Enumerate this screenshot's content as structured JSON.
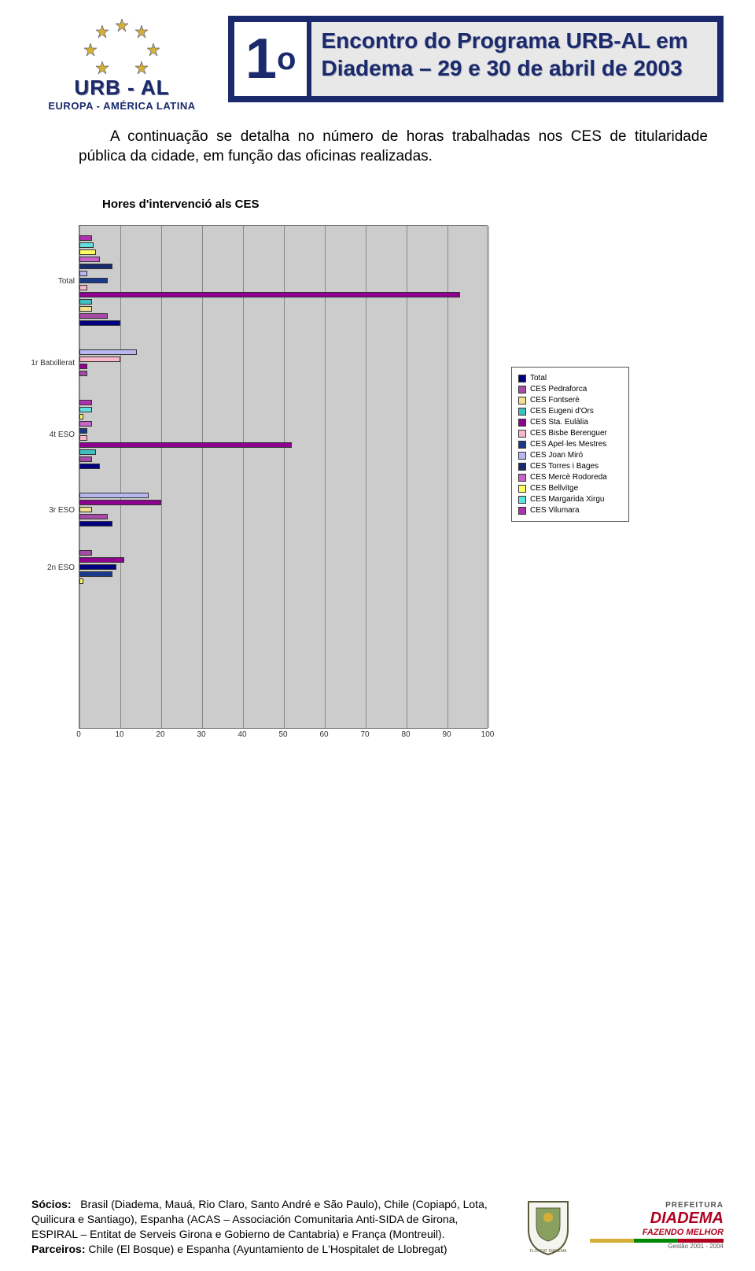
{
  "header": {
    "logo_title": "URB - AL",
    "logo_sub": "EUROPA - AMÉRICA LATINA",
    "banner_num": "1",
    "banner_sup": "o",
    "banner_line1": "Encontro do Programa URB-AL em",
    "banner_line2": "Diadema – 29 e 30 de abril de 2003"
  },
  "intro": {
    "text": "A continuação se detalha no número de horas trabalhadas nos CES de titularidade pública da cidade, em função das oficinas realizadas."
  },
  "chart": {
    "title": "Hores d'intervenció als CES",
    "type": "bar-horizontal-grouped",
    "background_color": "#cccccc",
    "grid_color": "#888888",
    "x_min": 0,
    "x_max": 100,
    "x_step": 10,
    "x_ticks": [
      0,
      10,
      20,
      30,
      40,
      50,
      60,
      70,
      80,
      90,
      100
    ],
    "y_categories": [
      "Total",
      "1r Batxillerat",
      "4t ESO",
      "3r ESO",
      "2n ESO"
    ],
    "series": [
      {
        "name": "Total",
        "color": "#000080"
      },
      {
        "name": "CES Pedraforca",
        "color": "#a64ca6"
      },
      {
        "name": "CES Fontserè",
        "color": "#f0e090"
      },
      {
        "name": "CES Eugeni d'Ors",
        "color": "#40c0c0"
      },
      {
        "name": "CES Sta. Eulàlia",
        "color": "#900090"
      },
      {
        "name": "CES Bisbe Berenguer",
        "color": "#f8b8c8"
      },
      {
        "name": "CES Apel·les Mestres",
        "color": "#1a3a8a"
      },
      {
        "name": "CES Joan Miró",
        "color": "#b8b8f0"
      },
      {
        "name": "CES Torres i Bages",
        "color": "#1a2a6c"
      },
      {
        "name": "CES Mercè Rodoreda",
        "color": "#c864c8"
      },
      {
        "name": "CES Bellvitge",
        "color": "#ffff60"
      },
      {
        "name": "CES Margarida Xirgu",
        "color": "#60e0e0"
      },
      {
        "name": "CES Vilumara",
        "color": "#b030b0"
      }
    ],
    "groups": [
      {
        "category": "Total",
        "bars": [
          {
            "series": "CES Vilumara",
            "value": 3,
            "color": "#b030b0"
          },
          {
            "series": "CES Margarida Xirgu",
            "value": 3.5,
            "color": "#60e0e0"
          },
          {
            "series": "CES Bellvitge",
            "value": 4,
            "color": "#ffff60"
          },
          {
            "series": "CES Mercè Rodoreda",
            "value": 5,
            "color": "#c864c8"
          },
          {
            "series": "CES Torres i Bages",
            "value": 8,
            "color": "#1a2a6c"
          },
          {
            "series": "CES Joan Miró",
            "value": 2,
            "color": "#b8b8f0"
          },
          {
            "series": "CES Apel·les Mestres",
            "value": 7,
            "color": "#1a3a8a"
          },
          {
            "series": "CES Bisbe Berenguer",
            "value": 2,
            "color": "#f8b8c8"
          },
          {
            "series": "CES Sta. Eulàlia",
            "value": 93,
            "color": "#900090"
          },
          {
            "series": "CES Eugeni d'Ors",
            "value": 3,
            "color": "#40c0c0"
          },
          {
            "series": "CES Fontserè",
            "value": 3,
            "color": "#f0e090"
          },
          {
            "series": "CES Pedraforca",
            "value": 7,
            "color": "#a64ca6"
          },
          {
            "series": "Total",
            "value": 10,
            "color": "#000080"
          }
        ]
      },
      {
        "category": "1r Batxillerat",
        "bars": [
          {
            "series": "CES Joan Miró",
            "value": 14,
            "color": "#b8b8f0"
          },
          {
            "series": "CES Bisbe Berenguer",
            "value": 10,
            "color": "#f8b8c8"
          },
          {
            "series": "CES Sta. Eulàlia",
            "value": 2,
            "color": "#900090"
          },
          {
            "series": "CES Pedraforca",
            "value": 2,
            "color": "#a64ca6"
          }
        ]
      },
      {
        "category": "4t ESO",
        "bars": [
          {
            "series": "CES Vilumara",
            "value": 3,
            "color": "#b030b0"
          },
          {
            "series": "CES Margarida Xirgu",
            "value": 3,
            "color": "#60e0e0"
          },
          {
            "series": "CES Bellvitge",
            "value": 1,
            "color": "#ffff60"
          },
          {
            "series": "CES Mercè Rodoreda",
            "value": 3,
            "color": "#c864c8"
          },
          {
            "series": "CES Apel·les Mestres",
            "value": 2,
            "color": "#1a3a8a"
          },
          {
            "series": "CES Bisbe Berenguer",
            "value": 2,
            "color": "#f8b8c8"
          },
          {
            "series": "CES Sta. Eulàlia",
            "value": 52,
            "color": "#900090"
          },
          {
            "series": "CES Eugeni d'Ors",
            "value": 4,
            "color": "#40c0c0"
          },
          {
            "series": "CES Pedraforca",
            "value": 3,
            "color": "#a64ca6"
          },
          {
            "series": "Total",
            "value": 5,
            "color": "#000080"
          }
        ]
      },
      {
        "category": "3r ESO",
        "bars": [
          {
            "series": "CES Joan Miró",
            "value": 17,
            "color": "#b8b8f0"
          },
          {
            "series": "CES Sta. Eulàlia",
            "value": 20,
            "color": "#900090"
          },
          {
            "series": "CES Fontserè",
            "value": 3,
            "color": "#f0e090"
          },
          {
            "series": "CES Pedraforca",
            "value": 7,
            "color": "#a64ca6"
          },
          {
            "series": "Total",
            "value": 8,
            "color": "#000080"
          }
        ]
      },
      {
        "category": "2n ESO",
        "bars": [
          {
            "series": "CES Pedraforca",
            "value": 3,
            "color": "#a64ca6"
          },
          {
            "series": "CES Sta. Eulàlia",
            "value": 11,
            "color": "#900090"
          },
          {
            "series": "Total",
            "value": 9,
            "color": "#000080"
          },
          {
            "series": "CES Apel·les Mestres",
            "value": 8,
            "color": "#1a3a8a"
          },
          {
            "series": "CES Bellvitge",
            "value": 1,
            "color": "#ffff60"
          }
        ]
      }
    ]
  },
  "footer": {
    "socios_label": "Sócios:",
    "socios_text": "Brasil (Diadema, Mauá, Rio Claro, Santo André e São Paulo), Chile (Copiapó, Lota, Quilicura e Santiago), Espanha (ACAS – Associación Comunitaria Anti-SIDA de Girona, ESPIRAL – Entitat de Serveis Girona e Gobierno de Cantabria) e França (Montreuil).",
    "parceiros_label": "Parceiros:",
    "parceiros_text": "Chile (El Bosque) e Espanha (Ayuntamiento de L'Hospitalet de Llobregat)",
    "diadema_line1": "PREFEITURA",
    "diadema_line2": "DIADEMA",
    "diadema_line3": "FAZENDO MELHOR",
    "diadema_line4": "Gestão 2001 - 2004"
  },
  "colors": {
    "brand_navy": "#1a2a6c",
    "banner_bg": "#e8e8e8",
    "diadema_red": "#b00020"
  }
}
